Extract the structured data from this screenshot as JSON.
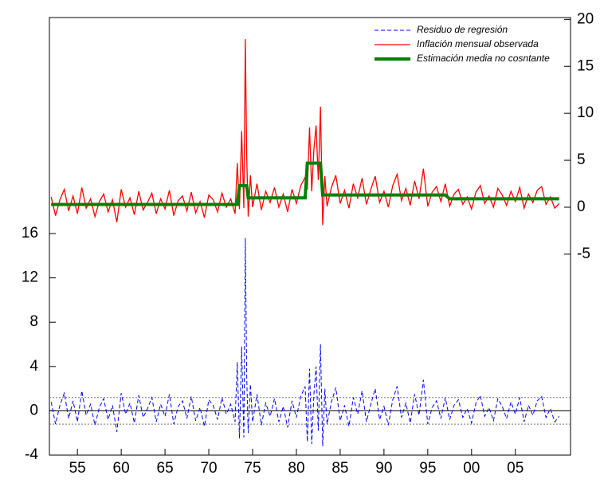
{
  "chart_data": {
    "type": "line",
    "x": [
      1952,
      1952.5,
      1953,
      1953.5,
      1954,
      1954.5,
      1955,
      1955.5,
      1956,
      1956.5,
      1957,
      1957.5,
      1958,
      1958.5,
      1959,
      1959.5,
      1960,
      1960.5,
      1961,
      1961.5,
      1962,
      1962.5,
      1963,
      1963.5,
      1964,
      1964.5,
      1965,
      1965.5,
      1966,
      1966.5,
      1967,
      1967.5,
      1968,
      1968.5,
      1969,
      1969.5,
      1970,
      1970.5,
      1971,
      1971.5,
      1972,
      1972.5,
      1973,
      1973.25,
      1973.5,
      1973.75,
      1974,
      1974.17,
      1974.33,
      1974.5,
      1974.75,
      1975,
      1975.5,
      1976,
      1976.5,
      1977,
      1977.5,
      1978,
      1978.5,
      1979,
      1979.5,
      1980,
      1980.5,
      1981,
      1981.25,
      1981.5,
      1981.75,
      1982,
      1982.25,
      1982.5,
      1982.75,
      1983,
      1983.25,
      1983.5,
      1984,
      1984.5,
      1985,
      1985.5,
      1986,
      1986.5,
      1987,
      1987.5,
      1988,
      1988.5,
      1989,
      1989.5,
      1990,
      1990.5,
      1991,
      1991.5,
      1992,
      1992.5,
      1993,
      1993.5,
      1994,
      1994.5,
      1995,
      1995.5,
      1996,
      1996.5,
      1997,
      1997.5,
      1998,
      1998.5,
      1999,
      1999.5,
      2000,
      2000.5,
      2001,
      2001.5,
      2002,
      2002.5,
      2003,
      2003.5,
      2004,
      2004.5,
      2005,
      2005.5,
      2006,
      2006.5,
      2007,
      2007.5,
      2008,
      2008.5,
      2009,
      2009.5,
      2010
    ],
    "series": [
      {
        "name": "Residuo de regresión",
        "color": "#0000ff",
        "axis": "y",
        "dash": true,
        "width": 1,
        "values": [
          0.8,
          -1.2,
          0.5,
          1.6,
          -0.7,
          0.9,
          -1.0,
          1.8,
          -0.4,
          0.6,
          -1.3,
          0.3,
          1.1,
          -0.8,
          0.5,
          -1.9,
          1.6,
          -0.3,
          0.7,
          -1.1,
          1.4,
          -0.6,
          0.2,
          1.2,
          -1.0,
          0.6,
          -0.5,
          1.5,
          -1.2,
          0.4,
          0.9,
          -0.7,
          1.3,
          -0.9,
          0.3,
          -1.4,
          1.0,
          0.5,
          -0.8,
          1.2,
          -0.3,
          0.6,
          -1.0,
          4.4,
          -2.5,
          5.8,
          -2.4,
          15.6,
          3.0,
          -2.0,
          2.4,
          -1.0,
          1.5,
          -1.3,
          0.7,
          -0.5,
          1.1,
          -1.0,
          0.4,
          -1.5,
          0.9,
          -0.6,
          1.3,
          2.2,
          -2.8,
          3.8,
          -3.0,
          1.5,
          4.0,
          -1.8,
          6.0,
          -3.2,
          2.0,
          -1.2,
          0.8,
          2.1,
          -0.9,
          0.5,
          -1.4,
          1.2,
          -0.3,
          1.8,
          -1.0,
          0.6,
          2.0,
          -0.8,
          0.4,
          -1.3,
          1.0,
          2.2,
          -0.6,
          0.7,
          -1.1,
          1.5,
          -0.4,
          2.8,
          -1.2,
          0.3,
          0.9,
          -0.7,
          1.2,
          -0.8,
          0.5,
          1.0,
          -0.6,
          0.2,
          -1.1,
          0.7,
          1.4,
          -0.5,
          0.3,
          -0.9,
          1.1,
          0.4,
          -0.7,
          0.8,
          -0.3,
          1.2,
          -1.0,
          0.5,
          -0.4,
          0.9,
          1.3,
          -0.6,
          0.2,
          -1.0,
          -0.5
        ]
      },
      {
        "name": "Inflación mensual observada",
        "color": "#ff0000",
        "axis": "y2",
        "dash": false,
        "width": 1.3,
        "values": [
          1.1,
          -0.9,
          0.8,
          1.9,
          -0.4,
          1.2,
          -0.7,
          2.1,
          -0.1,
          0.9,
          -1.0,
          0.6,
          1.4,
          -0.5,
          0.8,
          -1.6,
          1.9,
          0,
          1.0,
          -0.8,
          1.7,
          -0.3,
          0.5,
          1.5,
          -0.7,
          0.9,
          -0.2,
          1.8,
          -0.9,
          0.7,
          1.2,
          -0.4,
          1.6,
          -0.6,
          0.6,
          -1.1,
          1.3,
          0.8,
          -0.5,
          1.5,
          0,
          0.9,
          -0.7,
          4.7,
          -0.2,
          8.1,
          -0.1,
          17.9,
          5.3,
          -1.0,
          3.4,
          0,
          2.5,
          -0.3,
          1.7,
          0.5,
          2.1,
          0,
          1.4,
          -0.5,
          1.9,
          0.4,
          2.3,
          3.2,
          1.9,
          8.5,
          1.7,
          6.2,
          8.7,
          2.9,
          10.7,
          -1.9,
          3.3,
          0.1,
          2.1,
          3.4,
          0.4,
          1.8,
          -0.1,
          2.5,
          1.0,
          3.1,
          0.3,
          1.9,
          3.3,
          0.5,
          1.7,
          0,
          2.3,
          3.5,
          0.7,
          2.0,
          0.2,
          2.8,
          0.9,
          4.1,
          0.1,
          1.6,
          2.2,
          0.6,
          2.5,
          0.1,
          1.4,
          1.9,
          0.3,
          1.1,
          -0.2,
          1.6,
          2.3,
          0.4,
          1.2,
          0,
          2.0,
          1.3,
          0.2,
          1.7,
          0.6,
          2.1,
          -0.1,
          1.4,
          0.5,
          1.8,
          2.2,
          0.3,
          1.1,
          -0.1,
          0.4
        ]
      },
      {
        "name": "Estimación media no cosntante",
        "color": "#008000",
        "axis": "y2",
        "dash": false,
        "width": 4,
        "values": [
          0.3,
          0.3,
          0.3,
          0.3,
          0.3,
          0.3,
          0.3,
          0.3,
          0.3,
          0.3,
          0.3,
          0.3,
          0.3,
          0.3,
          0.3,
          0.3,
          0.3,
          0.3,
          0.3,
          0.3,
          0.3,
          0.3,
          0.3,
          0.3,
          0.3,
          0.3,
          0.3,
          0.3,
          0.3,
          0.3,
          0.3,
          0.3,
          0.3,
          0.3,
          0.3,
          0.3,
          0.3,
          0.3,
          0.3,
          0.3,
          0.3,
          0.3,
          0.3,
          0.3,
          2.3,
          2.3,
          2.3,
          2.3,
          2.3,
          1.0,
          1.0,
          1.0,
          1.0,
          1.0,
          1.0,
          1.0,
          1.0,
          1.0,
          1.0,
          1.0,
          1.0,
          1.0,
          1.0,
          1.0,
          4.7,
          4.7,
          4.7,
          4.7,
          4.7,
          4.7,
          4.7,
          1.3,
          1.3,
          1.3,
          1.3,
          1.3,
          1.3,
          1.3,
          1.3,
          1.3,
          1.3,
          1.3,
          1.3,
          1.3,
          1.3,
          1.3,
          1.3,
          1.3,
          1.3,
          1.3,
          1.3,
          1.3,
          1.3,
          1.3,
          1.3,
          1.3,
          1.3,
          1.3,
          1.3,
          1.3,
          1.3,
          0.9,
          0.9,
          0.9,
          0.9,
          0.9,
          0.9,
          0.9,
          0.9,
          0.9,
          0.9,
          0.9,
          0.9,
          0.9,
          0.9,
          0.9,
          0.9,
          0.9,
          0.9,
          0.9,
          0.9,
          0.9,
          0.9,
          0.9,
          0.9,
          0.9,
          0.9
        ]
      }
    ],
    "hlines": [
      -1.2,
      0,
      1.2
    ],
    "xlim": [
      1951.8,
      2011.3
    ],
    "xticks": [
      {
        "value": 1955,
        "label": "55"
      },
      {
        "value": 1960,
        "label": "60"
      },
      {
        "value": 1965,
        "label": "65"
      },
      {
        "value": 1970,
        "label": "70"
      },
      {
        "value": 1975,
        "label": "75"
      },
      {
        "value": 1980,
        "label": "80"
      },
      {
        "value": 1985,
        "label": "85"
      },
      {
        "value": 1990,
        "label": "90"
      },
      {
        "value": 1995,
        "label": "95"
      },
      {
        "value": 2000,
        "label": "00"
      },
      {
        "value": 2005,
        "label": "05"
      }
    ],
    "ylim": [
      -4,
      35.5
    ],
    "yticks": [
      -4,
      0,
      4,
      8,
      12,
      16
    ],
    "y2lim": [
      -26.4,
      20.2
    ],
    "y2ticks": [
      -5,
      0,
      5,
      10,
      15,
      20
    ],
    "legend": "upper right"
  }
}
